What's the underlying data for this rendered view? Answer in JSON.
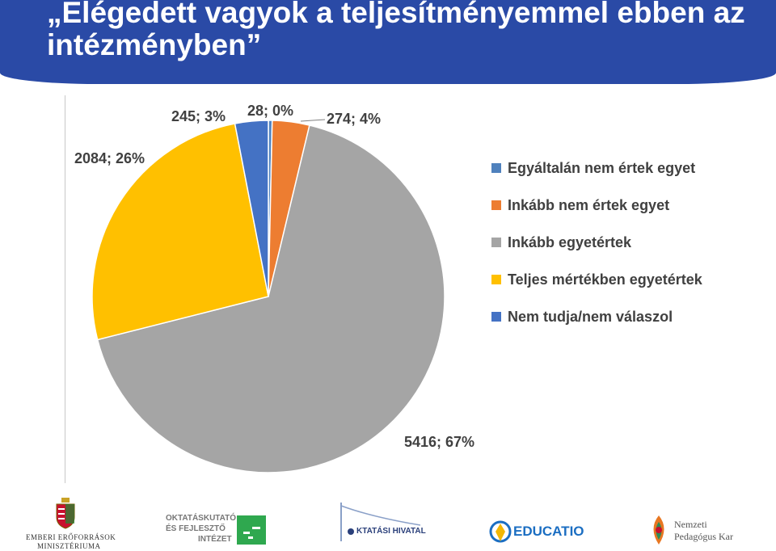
{
  "header": {
    "title": "„Elégedett vagyok a teljesítményemmel ebben az intézményben”",
    "background": "#2a4aa6"
  },
  "chart_data": {
    "type": "pie",
    "title": "",
    "slices": [
      {
        "name": "Egyáltalán nem értek egyet",
        "value": 28,
        "percent": "0%",
        "label": "28; 0%",
        "color": "#4f81bd"
      },
      {
        "name": "Inkább nem értek egyet",
        "value": 274,
        "percent": "4%",
        "label": "274; 4%",
        "color": "#ed7d31"
      },
      {
        "name": "Inkább egyetértek",
        "value": 5416,
        "percent": "67%",
        "label": "5416; 67%",
        "color": "#a5a5a5"
      },
      {
        "name": "Teljes mértékben egyetértek",
        "value": 2084,
        "percent": "26%",
        "label": "2084; 26%",
        "color": "#ffc000"
      },
      {
        "name": "Nem tudja/nem válaszol",
        "value": 245,
        "percent": "3%",
        "label": "245; 3%",
        "color": "#4472c4"
      }
    ],
    "legend_position": "right"
  },
  "legend": {
    "items": [
      {
        "label": "Egyáltalán nem értek egyet",
        "color": "#4f81bd"
      },
      {
        "label": "Inkább nem értek egyet",
        "color": "#ed7d31"
      },
      {
        "label": "Inkább egyetértek",
        "color": "#a5a5a5"
      },
      {
        "label": "Teljes mértékben egyetértek",
        "color": "#ffc000"
      },
      {
        "label": "Nem tudja/nem válaszol",
        "color": "#4472c4"
      }
    ]
  },
  "logos": {
    "emmi": {
      "line1": "Emberi Erőforrások",
      "line2": "Minisztériuma",
      "icon": "coat-of-arms-icon"
    },
    "ofi": {
      "line1": "OKTATÁSKUTATÓ",
      "line2": "ÉS FEJLESZTŐ",
      "line3": "INTÉZET",
      "icon": "ofi-logo-icon"
    },
    "oh": {
      "text": "KTATÁSI HIVATAL",
      "icon": "oktatasi-hivatal-logo-icon"
    },
    "educatio": {
      "text": "EDUCATIO",
      "icon": "educatio-logo-icon"
    },
    "npk": {
      "line1": "Nemzeti",
      "line2": "Pedagógus Kar",
      "icon": "npk-logo-icon"
    }
  }
}
